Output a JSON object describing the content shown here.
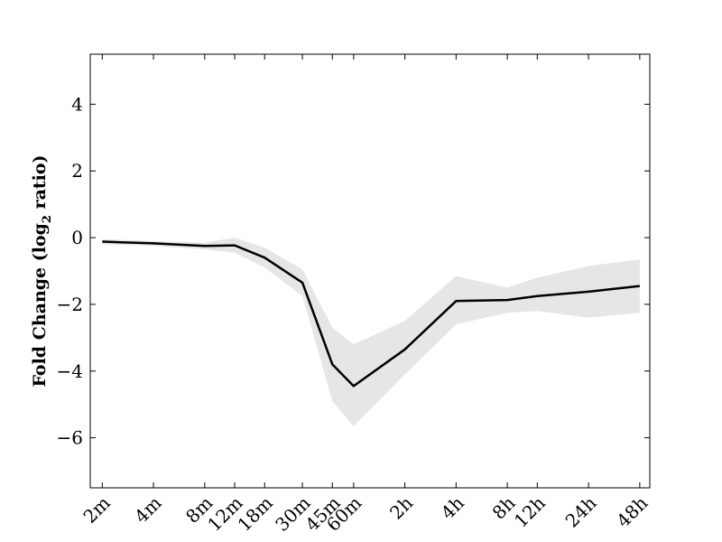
{
  "chart_data": {
    "type": "line",
    "title": "",
    "xlabel": "",
    "ylabel_main": "Fold Change (log",
    "ylabel_sub": "2",
    "ylabel_tail": " ratio)",
    "x_ticks": [
      "2m",
      "4m",
      "8m",
      "12m",
      "18m",
      "30m",
      "45m",
      "60m",
      "2h",
      "4h",
      "8h",
      "12h",
      "24h",
      "48h"
    ],
    "x_log_minutes": [
      2,
      4,
      8,
      12,
      18,
      30,
      45,
      60,
      120,
      240,
      480,
      720,
      1440,
      2880
    ],
    "ylim": [
      -7.5,
      5.5
    ],
    "xlim_minutes": [
      1.7,
      3300
    ],
    "y_ticks": [
      4,
      2,
      0,
      -2,
      -4,
      -6
    ],
    "y_tick_labels": [
      "4",
      "2",
      "0",
      "−2",
      "−4",
      "−6"
    ],
    "series": [
      {
        "values": [
          -0.12,
          -0.17,
          -0.25,
          -0.23,
          -0.6,
          -1.35,
          -3.8,
          -4.45,
          -3.35,
          -1.9,
          -1.87,
          -1.75,
          -1.62,
          -1.45
        ],
        "upper": [
          -0.05,
          -0.1,
          -0.15,
          0.0,
          -0.3,
          -0.95,
          -2.7,
          -3.2,
          -2.5,
          -1.15,
          -1.5,
          -1.2,
          -0.85,
          -0.65
        ],
        "lower": [
          -0.2,
          -0.25,
          -0.35,
          -0.45,
          -0.9,
          -1.75,
          -4.9,
          -5.65,
          -4.1,
          -2.6,
          -2.25,
          -2.2,
          -2.4,
          -2.25
        ]
      }
    ],
    "colors": {
      "line": "#000000",
      "band": "#e6e6e6",
      "axis": "#000000"
    },
    "grid": false,
    "legend": "none"
  }
}
